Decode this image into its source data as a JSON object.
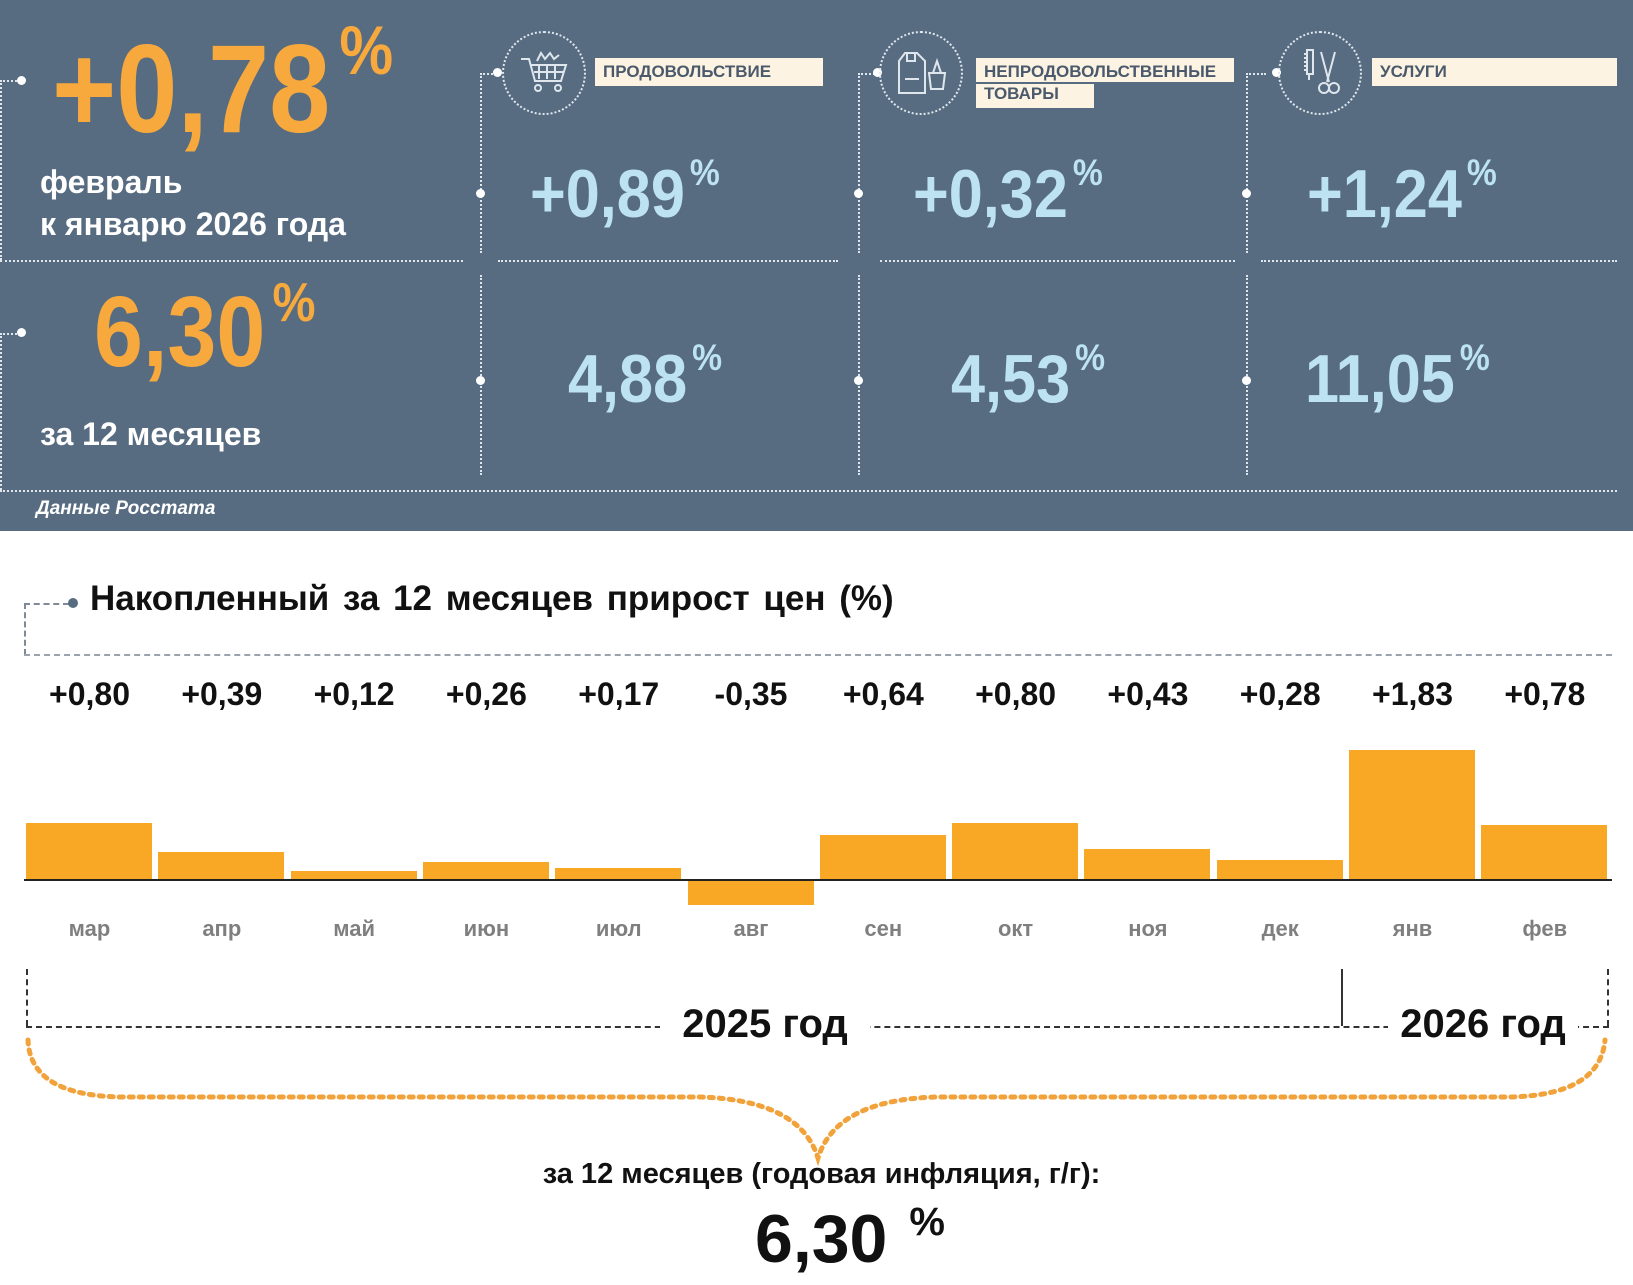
{
  "header": {
    "monthly": {
      "value": "+0,78",
      "unit": "%",
      "line1": "февраль",
      "line2": "к январю 2026 года"
    },
    "annual": {
      "value": "6,30",
      "unit": "%",
      "label": "за 12 месяцев"
    },
    "source": "Данные Росстата",
    "categories": [
      {
        "label": "ПРОДОВОЛЬСТВИЕ",
        "icon": "shopping-cart-icon",
        "monthly": "+0,89",
        "annual": "4,88"
      },
      {
        "label_line1": "НЕПРОДОВОЛЬСТВЕННЫЕ",
        "label_line2": "ТОВАРЫ",
        "icon": "clothing-bag-icon",
        "monthly": "+0,32",
        "annual": "4,53"
      },
      {
        "label": "УСЛУГИ",
        "icon": "comb-scissors-icon",
        "monthly": "+1,24",
        "annual": "11,05"
      }
    ]
  },
  "chart_data": {
    "type": "bar",
    "title": "Накопленный за 12 месяцев прирост цен (%)",
    "categories": [
      "мар",
      "апр",
      "май",
      "июн",
      "июл",
      "авг",
      "сен",
      "окт",
      "ноя",
      "дек",
      "янв",
      "фев"
    ],
    "values": [
      0.8,
      0.39,
      0.12,
      0.26,
      0.17,
      -0.35,
      0.64,
      0.8,
      0.43,
      0.28,
      1.83,
      0.78
    ],
    "value_labels": [
      "+0,80",
      "+0,39",
      "+0,12",
      "+0,26",
      "+0,17",
      "-0,35",
      "+0,64",
      "+0,80",
      "+0,43",
      "+0,28",
      "+1,83",
      "+0,78"
    ],
    "year_labels": [
      "2025 год",
      "2026 год"
    ],
    "bar_color": "#f9a825"
  },
  "footer": {
    "label": "за 12 месяцев (годовая инфляция, г/г):",
    "value": "6,30",
    "unit": "%"
  }
}
